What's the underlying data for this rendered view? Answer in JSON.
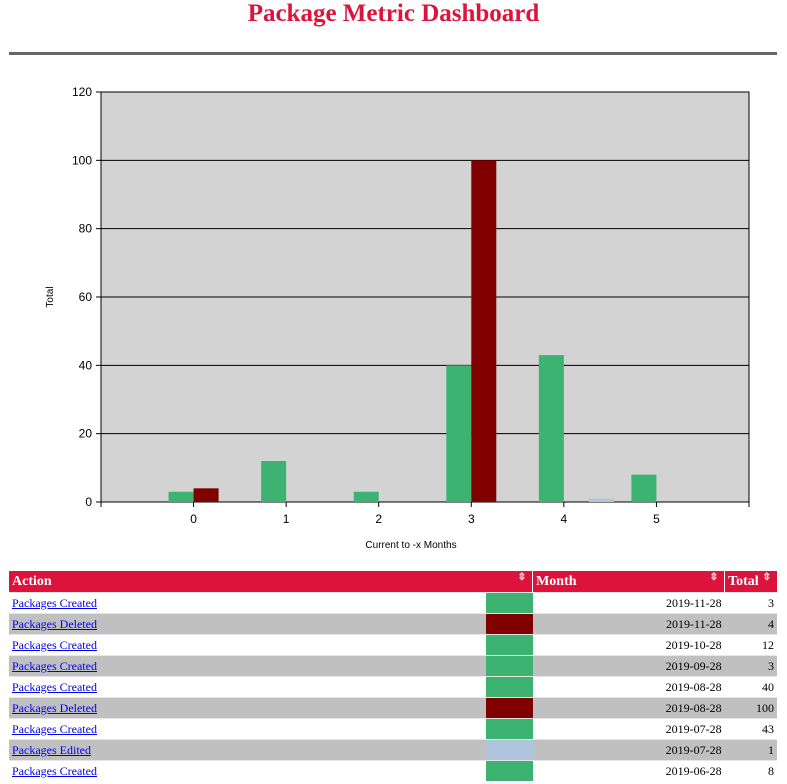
{
  "page": {
    "title": "Package Metric Dashboard"
  },
  "colors": {
    "created": "#3cb371",
    "deleted": "#800000",
    "edited": "#b0c4de",
    "accent": "#dc143c",
    "plot_bg": "#d3d3d3"
  },
  "chart_data": {
    "type": "bar",
    "title": "",
    "xlabel": "Current to -x Months",
    "ylabel": "Total",
    "ylim": [
      0,
      120
    ],
    "y_ticks": [
      0,
      20,
      40,
      60,
      80,
      100,
      120
    ],
    "categories": [
      "0",
      "1",
      "2",
      "3",
      "4",
      "5"
    ],
    "grid": true,
    "series": [
      {
        "color": "#3cb371",
        "values": [
          3,
          12,
          3,
          40,
          43,
          8
        ]
      },
      {
        "color": "#800000",
        "values": [
          4,
          0,
          0,
          100,
          0,
          0
        ]
      },
      {
        "color": "#b0c4de",
        "values": [
          0,
          0,
          0,
          0,
          1,
          0
        ]
      }
    ]
  },
  "table": {
    "headers": {
      "action": "Action",
      "month": "Month",
      "total": "Total"
    },
    "sort_icon": "⇳",
    "rows": [
      {
        "action": "Packages Created",
        "color": "#3cb371",
        "month": "2019-11-28",
        "total": "3"
      },
      {
        "action": "Packages Deleted",
        "color": "#800000",
        "month": "2019-11-28",
        "total": "4"
      },
      {
        "action": "Packages Created",
        "color": "#3cb371",
        "month": "2019-10-28",
        "total": "12"
      },
      {
        "action": "Packages Created",
        "color": "#3cb371",
        "month": "2019-09-28",
        "total": "3"
      },
      {
        "action": "Packages Created",
        "color": "#3cb371",
        "month": "2019-08-28",
        "total": "40"
      },
      {
        "action": "Packages Deleted",
        "color": "#800000",
        "month": "2019-08-28",
        "total": "100"
      },
      {
        "action": "Packages Created",
        "color": "#3cb371",
        "month": "2019-07-28",
        "total": "43"
      },
      {
        "action": "Packages Edited",
        "color": "#b0c4de",
        "month": "2019-07-28",
        "total": "1"
      },
      {
        "action": "Packages Created",
        "color": "#3cb371",
        "month": "2019-06-28",
        "total": "8"
      }
    ]
  }
}
